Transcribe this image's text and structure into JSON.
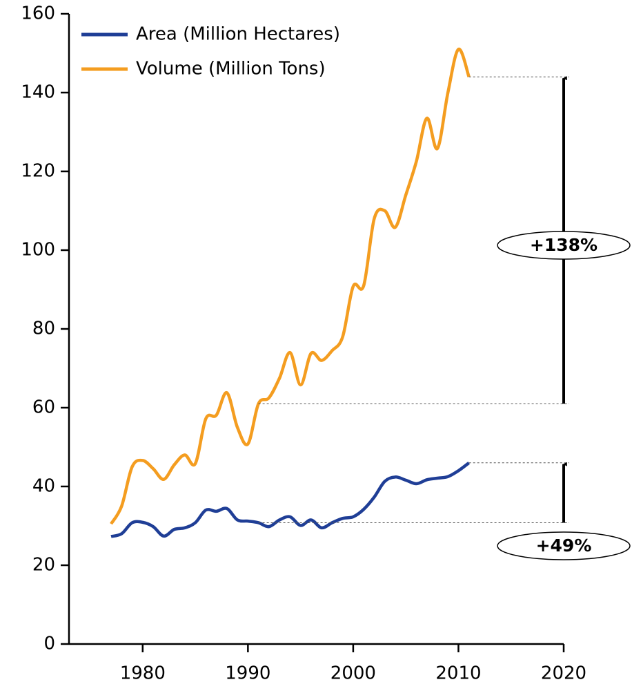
{
  "chart_data": {
    "type": "line",
    "x": [
      1977,
      1978,
      1979,
      1980,
      1981,
      1982,
      1983,
      1984,
      1985,
      1986,
      1987,
      1988,
      1989,
      1990,
      1991,
      1992,
      1993,
      1994,
      1995,
      1996,
      1997,
      1998,
      1999,
      2000,
      2001,
      2002,
      2003,
      2004,
      2005,
      2006,
      2007,
      2008,
      2009,
      2010,
      2011
    ],
    "series": [
      {
        "name": "Area (Million Hectares)",
        "color": "#1f3e96",
        "values": [
          27.3,
          28,
          30.8,
          30.9,
          29.8,
          27.4,
          29.1,
          29.5,
          30.8,
          34,
          33.7,
          34.4,
          31.5,
          31.2,
          30.8,
          29.8,
          31.5,
          32.3,
          30.1,
          31.5,
          29.5,
          30.8,
          31.9,
          32.3,
          34.2,
          37.3,
          41.3,
          42.4,
          41.6,
          40.7,
          41.7,
          42.1,
          42.5,
          44,
          46
        ]
      },
      {
        "name": "Volume (Million Tons)",
        "color": "#f49d20",
        "values": [
          30.5,
          35,
          45,
          46.6,
          44.5,
          41.8,
          45.5,
          48,
          45.8,
          57.2,
          58.1,
          63.8,
          55,
          50.8,
          61,
          62.5,
          67.5,
          74,
          65.8,
          73.8,
          72,
          74.5,
          78,
          90.8,
          91,
          108,
          110,
          105.8,
          114,
          122.5,
          133.5,
          125.8,
          140,
          151,
          144
        ]
      }
    ],
    "annotations": [
      "+138%",
      "+49%"
    ],
    "xlim": [
      1973,
      2020
    ],
    "xticks": [
      1980,
      1990,
      2000,
      2010,
      2020
    ],
    "ylim": [
      0,
      160
    ],
    "yticks": [
      0,
      20,
      40,
      60,
      80,
      100,
      120,
      140,
      160
    ],
    "legend": "upper left"
  }
}
